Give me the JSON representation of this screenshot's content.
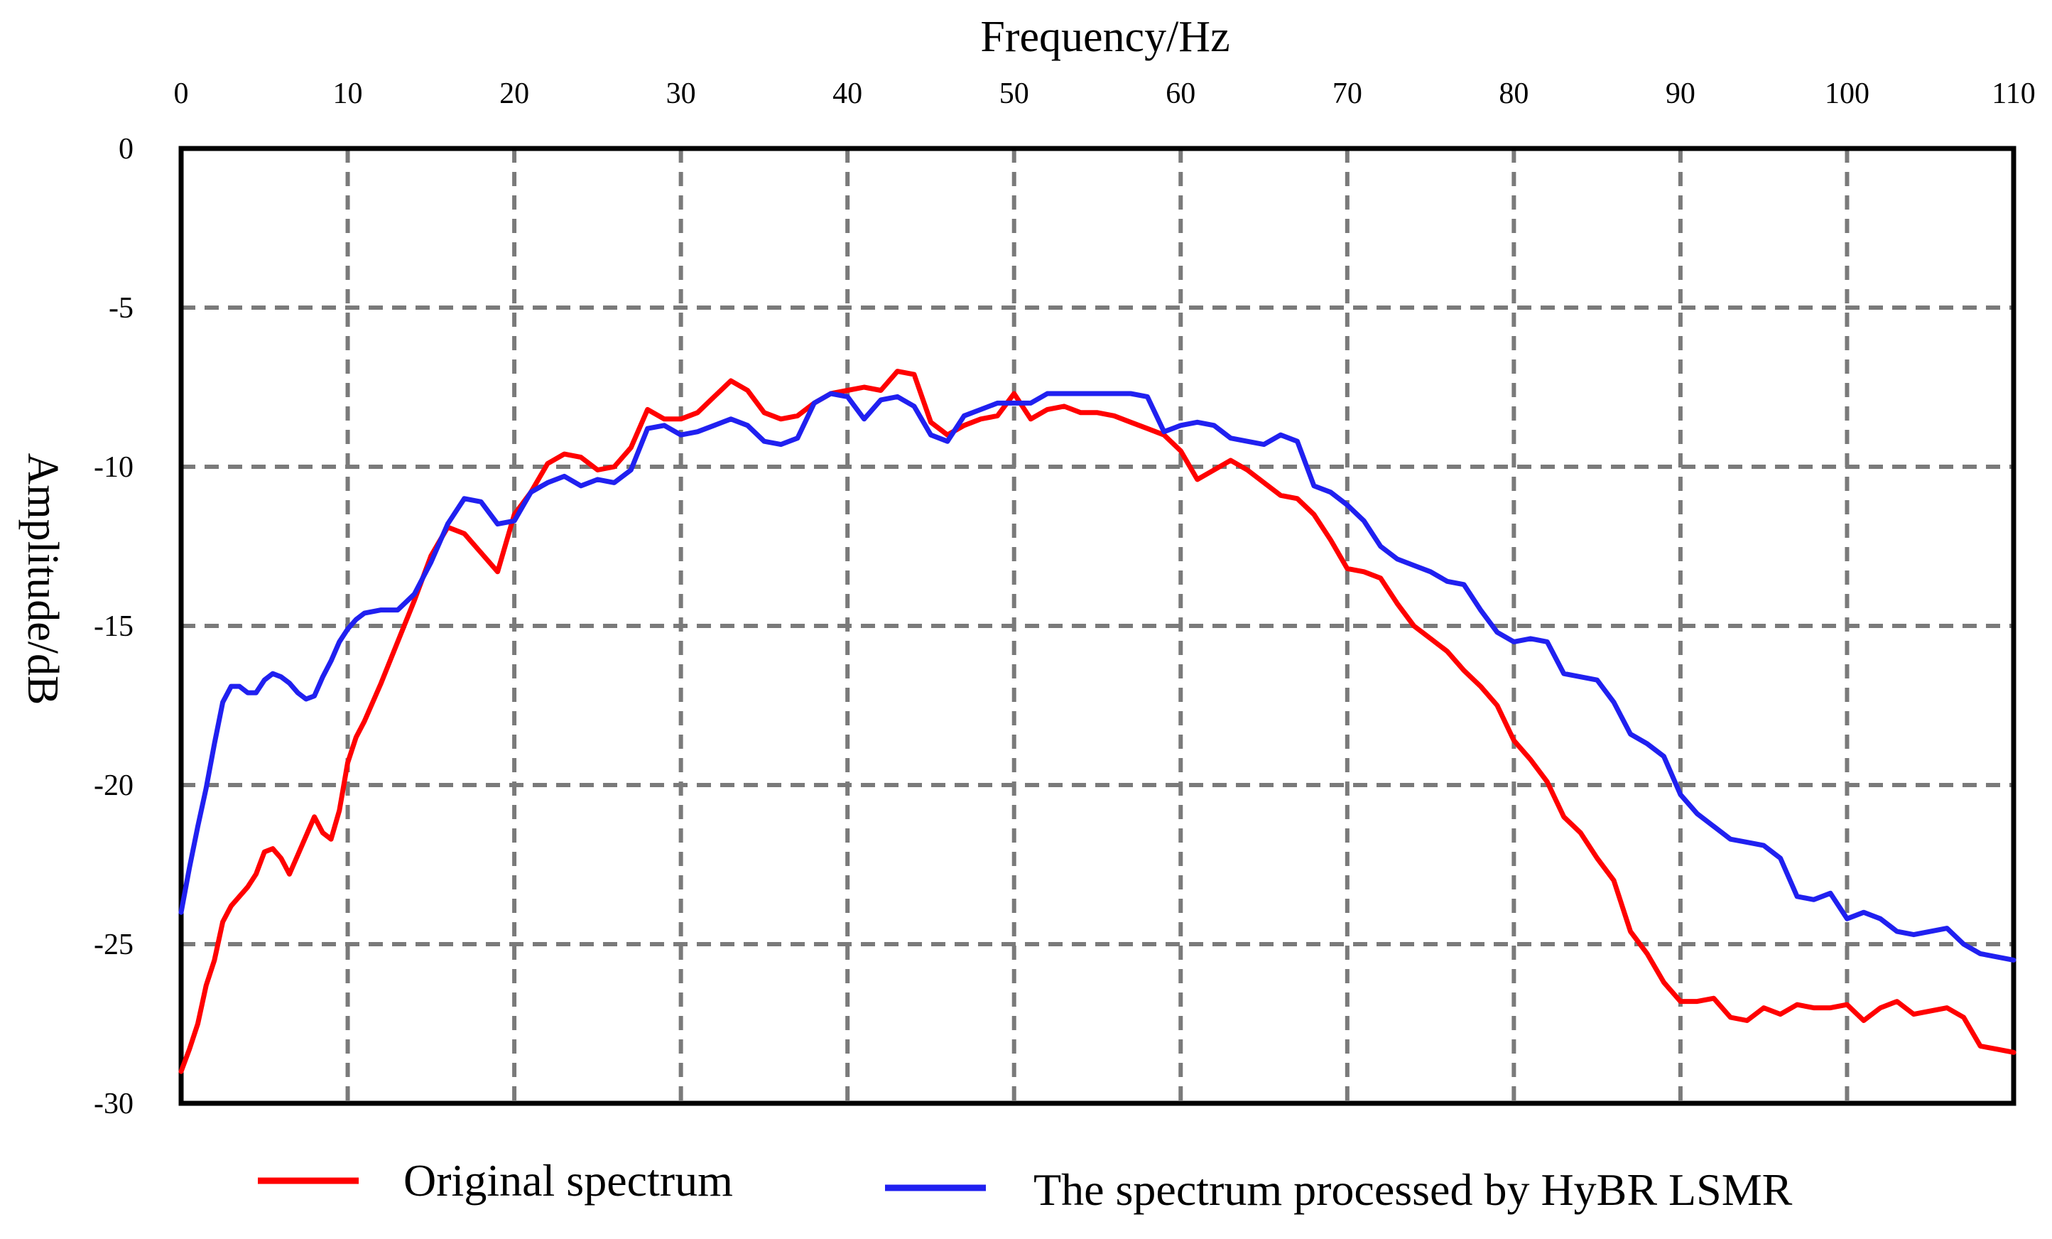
{
  "chart_data": {
    "type": "line",
    "xlabel": "Frequency/Hz",
    "ylabel": "Amplitude/dB",
    "xlim": [
      0,
      110
    ],
    "ylim": [
      -30,
      0
    ],
    "x_ticks": [
      0,
      10,
      20,
      30,
      40,
      50,
      60,
      70,
      80,
      90,
      100,
      110
    ],
    "x_tick_labels": [
      "0",
      "10",
      "20",
      "30",
      "40",
      "50",
      "60",
      "70",
      "80",
      "90",
      "100",
      "110"
    ],
    "y_ticks": [
      0,
      -5,
      -10,
      -15,
      -20,
      -25,
      -30
    ],
    "y_tick_labels": [
      "0",
      "-5",
      "-10",
      "-15",
      "-20",
      "-25",
      "-30"
    ],
    "x_axis_position": "top",
    "grid": true,
    "legend_position": "bottom",
    "series": [
      {
        "name": "Original spectrum",
        "color": "#ff0000",
        "x": [
          0,
          0.5,
          1,
          1.5,
          2,
          2.5,
          3,
          3.5,
          4,
          4.5,
          5,
          5.5,
          6,
          6.5,
          7,
          7.5,
          8,
          8.5,
          9,
          9.5,
          10,
          10.5,
          11,
          12,
          13,
          14,
          15,
          16,
          17,
          18,
          19,
          20,
          21,
          22,
          23,
          24,
          25,
          26,
          27,
          28,
          29,
          30,
          31,
          32,
          33,
          34,
          35,
          36,
          37,
          38,
          39,
          40,
          41,
          42,
          43,
          44,
          45,
          46,
          47,
          48,
          49,
          50,
          51,
          52,
          53,
          54,
          55,
          56,
          57,
          58,
          59,
          60,
          61,
          62,
          63,
          64,
          65,
          66,
          67,
          68,
          69,
          70,
          71,
          72,
          73,
          74,
          75,
          76,
          77,
          78,
          79,
          80,
          81,
          82,
          83,
          84,
          85,
          86,
          87,
          88,
          89,
          90,
          91,
          92,
          93,
          94,
          95,
          96,
          97,
          98,
          99,
          100,
          101,
          102,
          103,
          104,
          105,
          106,
          107,
          108,
          109,
          110
        ],
        "y": [
          -29.0,
          -28.3,
          -27.5,
          -26.3,
          -25.5,
          -24.3,
          -23.8,
          -23.5,
          -23.2,
          -22.8,
          -22.1,
          -22.0,
          -22.3,
          -22.8,
          -22.2,
          -21.6,
          -21.0,
          -21.5,
          -21.7,
          -20.8,
          -19.3,
          -18.5,
          -18.0,
          -16.8,
          -15.5,
          -14.2,
          -12.8,
          -11.9,
          -12.1,
          -12.7,
          -13.3,
          -11.5,
          -10.8,
          -9.9,
          -9.6,
          -9.7,
          -10.1,
          -10.0,
          -9.4,
          -8.2,
          -8.5,
          -8.5,
          -8.3,
          -7.8,
          -7.3,
          -7.6,
          -8.3,
          -8.5,
          -8.4,
          -8.0,
          -7.7,
          -7.6,
          -7.5,
          -7.6,
          -7.0,
          -7.1,
          -8.6,
          -9.0,
          -8.7,
          -8.5,
          -8.4,
          -7.7,
          -8.5,
          -8.2,
          -8.1,
          -8.3,
          -8.3,
          -8.4,
          -8.6,
          -8.8,
          -9.0,
          -9.5,
          -10.4,
          -10.1,
          -9.8,
          -10.1,
          -10.5,
          -10.9,
          -11.0,
          -11.5,
          -12.3,
          -13.2,
          -13.3,
          -13.5,
          -14.3,
          -15.0,
          -15.4,
          -15.8,
          -16.4,
          -16.9,
          -17.5,
          -18.6,
          -19.2,
          -19.9,
          -21.0,
          -21.5,
          -22.3,
          -23.0,
          -24.6,
          -25.3,
          -26.2,
          -26.8,
          -26.8,
          -26.7,
          -27.3,
          -27.4,
          -27.0,
          -27.2,
          -26.9,
          -27.0,
          -27.0,
          -26.9,
          -27.4,
          -27.0,
          -26.8,
          -27.2,
          -27.1,
          -27.0,
          -27.3,
          -28.2,
          -28.3,
          -28.4
        ]
      },
      {
        "name": "The spectrum processed by HyBR LSMR",
        "color": "#2020f0",
        "x": [
          0,
          0.5,
          1,
          1.5,
          2,
          2.5,
          3,
          3.5,
          4,
          4.5,
          5,
          5.5,
          6,
          6.5,
          7,
          7.5,
          8,
          8.5,
          9,
          9.5,
          10,
          10.5,
          11,
          12,
          13,
          14,
          15,
          16,
          17,
          18,
          19,
          20,
          21,
          22,
          23,
          24,
          25,
          26,
          27,
          28,
          29,
          30,
          31,
          32,
          33,
          34,
          35,
          36,
          37,
          38,
          39,
          40,
          41,
          42,
          43,
          44,
          45,
          46,
          47,
          48,
          49,
          50,
          51,
          52,
          53,
          54,
          55,
          56,
          57,
          58,
          59,
          60,
          61,
          62,
          63,
          64,
          65,
          66,
          67,
          68,
          69,
          70,
          71,
          72,
          73,
          74,
          75,
          76,
          77,
          78,
          79,
          80,
          81,
          82,
          83,
          84,
          85,
          86,
          87,
          88,
          89,
          90,
          91,
          92,
          93,
          94,
          95,
          96,
          97,
          98,
          99,
          100,
          101,
          102,
          103,
          104,
          105,
          106,
          107,
          108,
          109,
          110
        ],
        "y": [
          -24.0,
          -22.6,
          -21.3,
          -20.1,
          -18.7,
          -17.4,
          -16.9,
          -16.9,
          -17.1,
          -17.1,
          -16.7,
          -16.5,
          -16.6,
          -16.8,
          -17.1,
          -17.3,
          -17.2,
          -16.6,
          -16.1,
          -15.5,
          -15.1,
          -14.8,
          -14.6,
          -14.5,
          -14.5,
          -14.0,
          -13.0,
          -11.8,
          -11.0,
          -11.1,
          -11.8,
          -11.7,
          -10.8,
          -10.5,
          -10.3,
          -10.6,
          -10.4,
          -10.5,
          -10.1,
          -8.8,
          -8.7,
          -9.0,
          -8.9,
          -8.7,
          -8.5,
          -8.7,
          -9.2,
          -9.3,
          -9.1,
          -8.0,
          -7.7,
          -7.8,
          -8.5,
          -7.9,
          -7.8,
          -8.1,
          -9.0,
          -9.2,
          -8.4,
          -8.2,
          -8.0,
          -8.0,
          -8.0,
          -7.7,
          -7.7,
          -7.7,
          -7.7,
          -7.7,
          -7.7,
          -7.8,
          -8.9,
          -8.7,
          -8.6,
          -8.7,
          -9.1,
          -9.2,
          -9.3,
          -9.0,
          -9.2,
          -10.6,
          -10.8,
          -11.2,
          -11.7,
          -12.5,
          -12.9,
          -13.1,
          -13.3,
          -13.6,
          -13.7,
          -14.5,
          -15.2,
          -15.5,
          -15.4,
          -15.5,
          -16.5,
          -16.6,
          -16.7,
          -17.4,
          -18.4,
          -18.7,
          -19.1,
          -20.3,
          -20.9,
          -21.3,
          -21.7,
          -21.8,
          -21.9,
          -22.3,
          -23.5,
          -23.6,
          -23.4,
          -24.2,
          -24.0,
          -24.2,
          -24.6,
          -24.7,
          -24.6,
          -24.5,
          -25.0,
          -25.3,
          -25.4,
          -25.5
        ]
      }
    ]
  }
}
